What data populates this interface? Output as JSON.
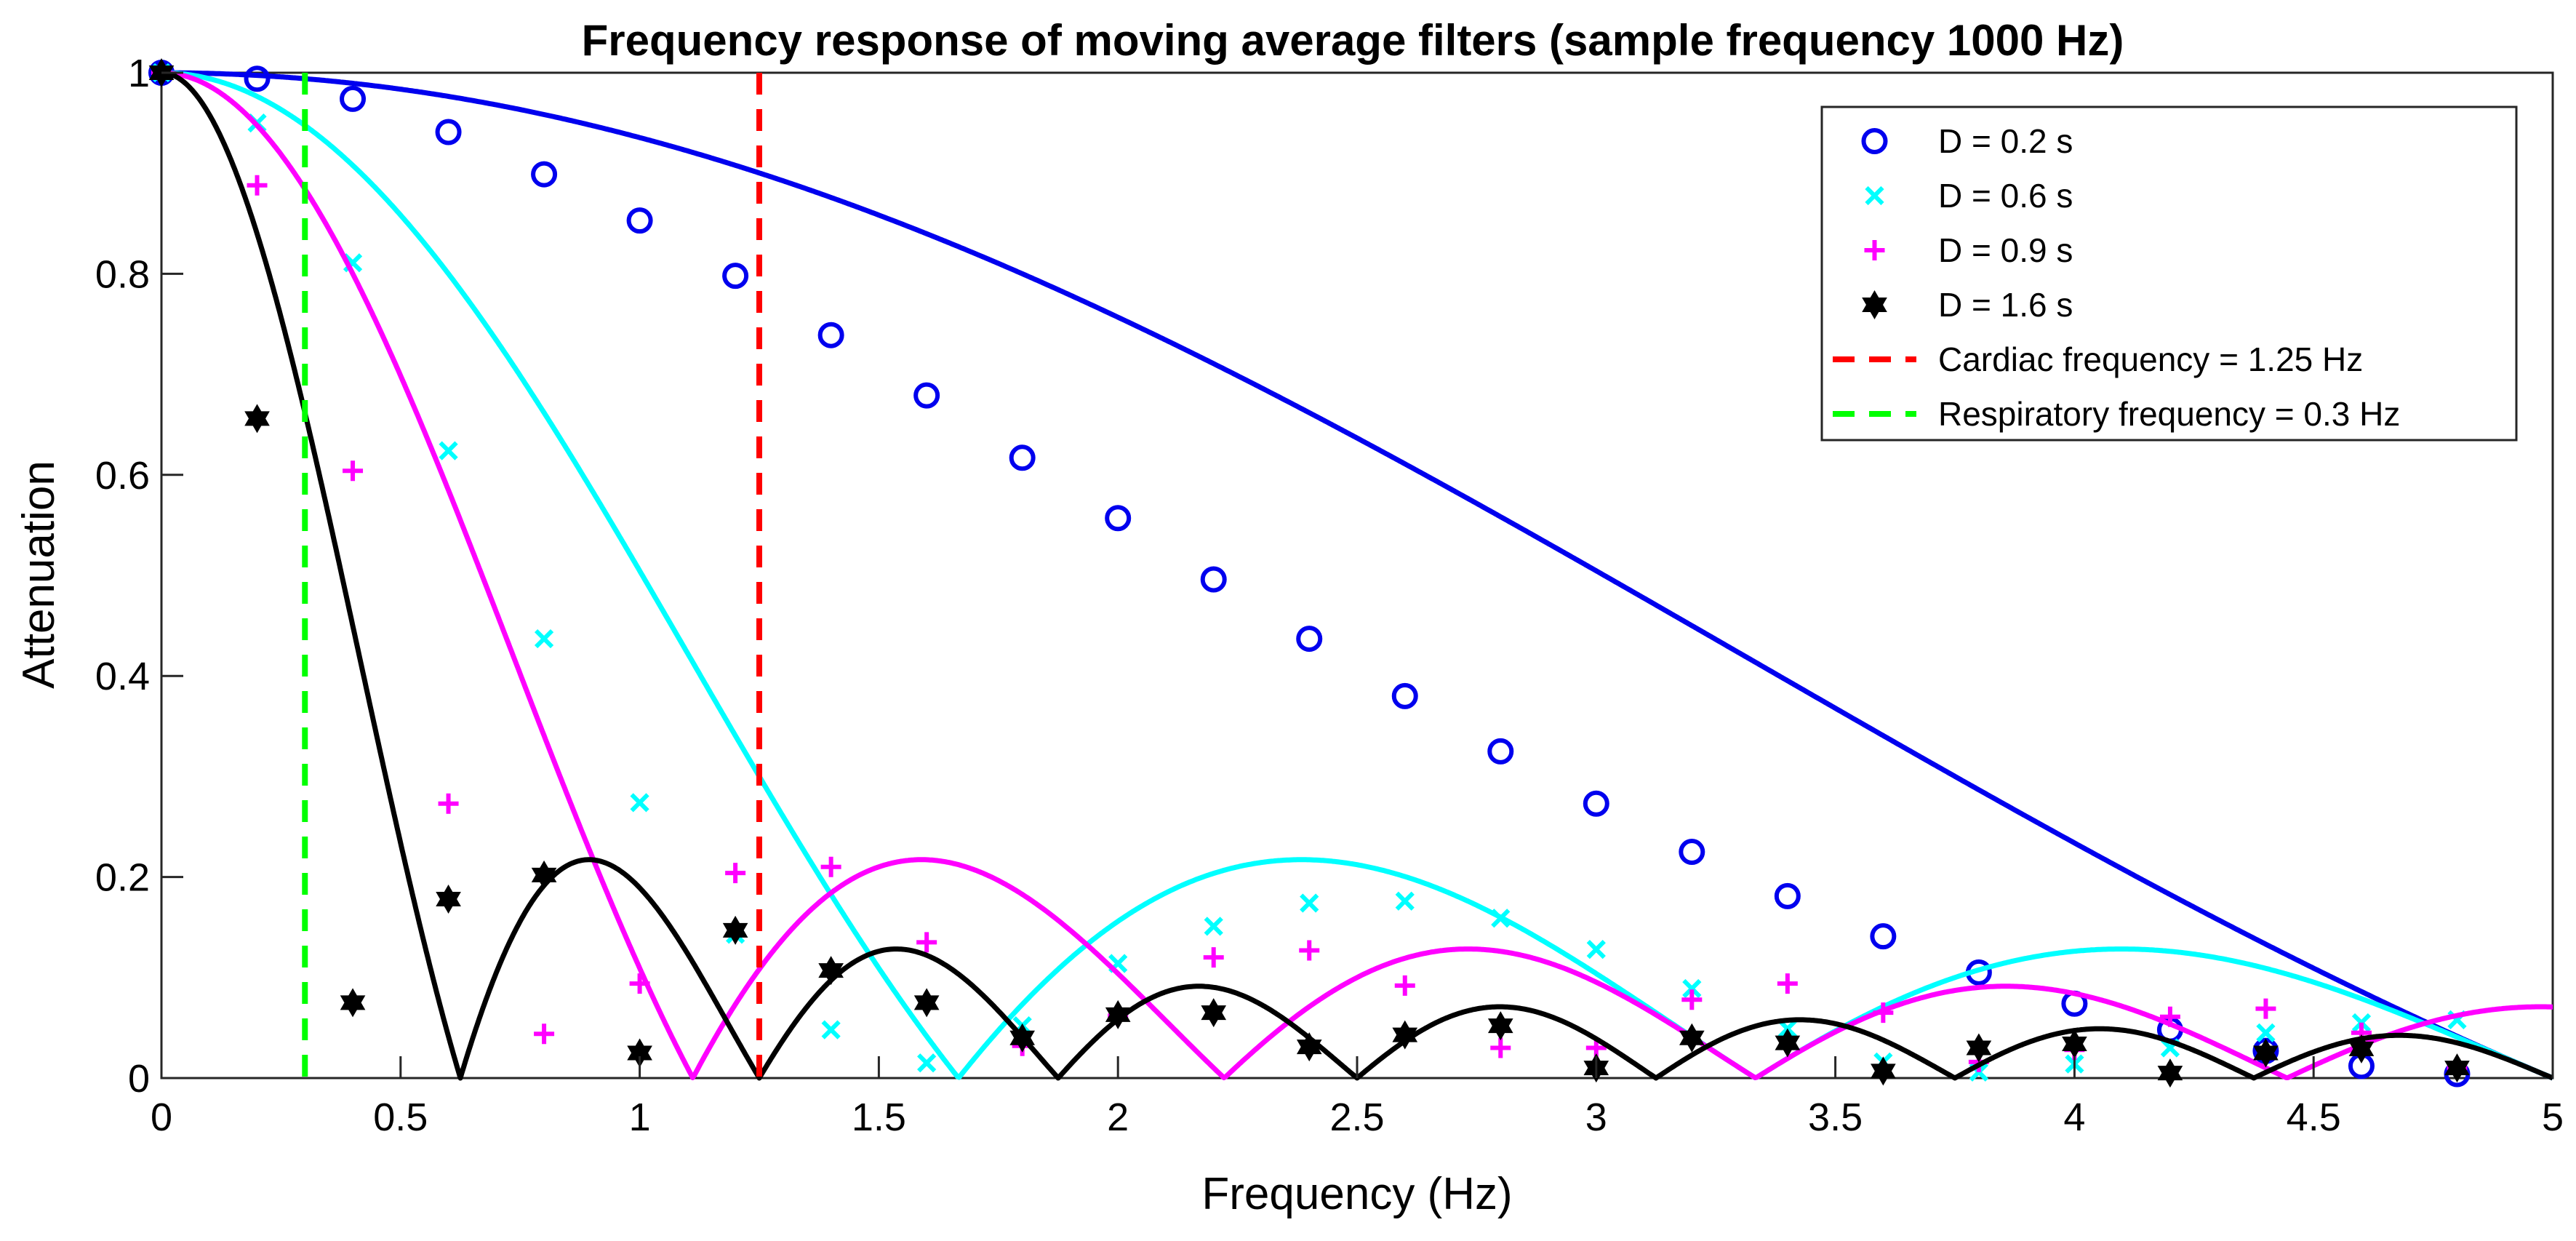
{
  "chart_data": {
    "type": "line",
    "title": "Frequency response of moving average filters (sample frequency 1000 Hz)",
    "xlabel": "Frequency (Hz)",
    "ylabel": "Attenuation",
    "xlim": [
      0,
      5
    ],
    "ylim": [
      0,
      1
    ],
    "xticks": [
      0,
      0.5,
      1,
      1.5,
      2,
      2.5,
      3,
      3.5,
      4,
      4.5,
      5
    ],
    "xtick_labels": [
      "0",
      "0.5",
      "1",
      "1.5",
      "2",
      "2.5",
      "3",
      "3.5",
      "4",
      "4.5",
      "5"
    ],
    "yticks": [
      0,
      0.2,
      0.4,
      0.6,
      0.8,
      1
    ],
    "ytick_labels": [
      "0",
      "0.2",
      "0.4",
      "0.6",
      "0.8",
      "1"
    ],
    "grid": false,
    "legend_position": "top-right",
    "marker_x": [
      0,
      0.2,
      0.4,
      0.6,
      0.8,
      1.0,
      1.2,
      1.4,
      1.6,
      1.8,
      2.0,
      2.2,
      2.4,
      2.6,
      2.8,
      3.0,
      3.2,
      3.4,
      3.6,
      3.8,
      4.0,
      4.2,
      4.4,
      4.6,
      4.8
    ],
    "series": [
      {
        "name": "D = 0.2 s",
        "duration": 0.2,
        "color": "#0000ee",
        "marker": "circle",
        "values": [
          1.0,
          0.994,
          0.974,
          0.941,
          0.899,
          0.853,
          0.798,
          0.739,
          0.679,
          0.617,
          0.557,
          0.496,
          0.437,
          0.38,
          0.325,
          0.273,
          0.225,
          0.181,
          0.141,
          0.105,
          0.074,
          0.048,
          0.027,
          0.012,
          0.004
        ]
      },
      {
        "name": "D = 0.6 s",
        "duration": 0.6,
        "color": "#00ffff",
        "marker": "x",
        "values": [
          1.0,
          0.95,
          0.811,
          0.624,
          0.437,
          0.274,
          0.143,
          0.048,
          0.015,
          0.052,
          0.114,
          0.151,
          0.174,
          0.176,
          0.159,
          0.128,
          0.089,
          0.049,
          0.016,
          0.006,
          0.014,
          0.03,
          0.045,
          0.055,
          0.058
        ]
      },
      {
        "name": "D = 0.9 s",
        "duration": 0.9,
        "color": "#ff00ff",
        "marker": "plus",
        "values": [
          1.0,
          0.888,
          0.604,
          0.273,
          0.044,
          0.094,
          0.204,
          0.21,
          0.135,
          0.032,
          0.062,
          0.12,
          0.127,
          0.092,
          0.03,
          0.03,
          0.078,
          0.094,
          0.065,
          0.016,
          0.028,
          0.061,
          0.069,
          0.045,
          0.01
        ]
      },
      {
        "name": "D = 1.6 s",
        "duration": 1.6,
        "color": "#000000",
        "marker": "hexagram",
        "values": [
          1.0,
          0.656,
          0.075,
          0.178,
          0.202,
          0.025,
          0.147,
          0.107,
          0.075,
          0.04,
          0.063,
          0.065,
          0.031,
          0.043,
          0.052,
          0.01,
          0.04,
          0.035,
          0.007,
          0.03,
          0.034,
          0.005,
          0.025,
          0.029,
          0.01
        ]
      },
      {
        "name": "Cardiac frequency = 1.25 Hz",
        "color": "#ff0000",
        "style": "dashed",
        "x": 1.25
      },
      {
        "name": "Respiratory frequency = 0.3 Hz",
        "color": "#00ff00",
        "style": "dashed",
        "x": 0.3
      }
    ]
  }
}
